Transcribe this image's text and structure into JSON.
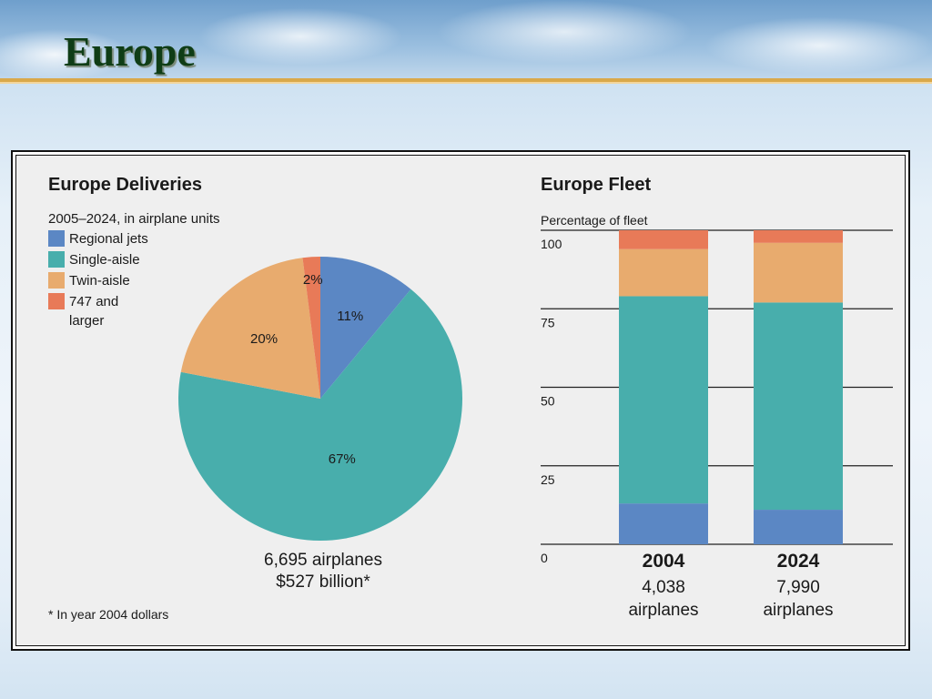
{
  "slide": {
    "title": "Europe"
  },
  "colors": {
    "regional": "#5b87c4",
    "single": "#48aeac",
    "twin": "#e8ab6e",
    "large": "#e87a58"
  },
  "chart_data": [
    {
      "type": "pie",
      "title": "Europe Deliveries",
      "subtitle": "2005–2024, in airplane units",
      "legend": [
        "Regional jets",
        "Single-aisle",
        "Twin-aisle",
        "747 and larger"
      ],
      "legend_lines": [
        [
          "Regional jets"
        ],
        [
          "Single-aisle"
        ],
        [
          "Twin-aisle"
        ],
        [
          "747 and",
          "larger"
        ]
      ],
      "slices": [
        {
          "name": "Regional jets",
          "value": 11,
          "label": "11%"
        },
        {
          "name": "Single-aisle",
          "value": 67,
          "label": "67%"
        },
        {
          "name": "Twin-aisle",
          "value": 20,
          "label": "20%"
        },
        {
          "name": "747 and larger",
          "value": 2,
          "label": "2%"
        }
      ],
      "total_airplanes": "6,695 airplanes",
      "total_value": "$527 billion*",
      "footnote": "* In year 2004 dollars"
    },
    {
      "type": "bar",
      "stacked": true,
      "title": "Europe Fleet",
      "ylabel": "Percentage of fleet",
      "ylim": [
        0,
        100
      ],
      "yticks": [
        "0",
        "25",
        "50",
        "75",
        "100"
      ],
      "categories": [
        "2004",
        "2024"
      ],
      "category_notes": [
        [
          "4,038",
          "airplanes"
        ],
        [
          "7,990",
          "airplanes"
        ]
      ],
      "series": [
        {
          "name": "Regional jets",
          "values": [
            13,
            11
          ]
        },
        {
          "name": "Single-aisle",
          "values": [
            66,
            66
          ]
        },
        {
          "name": "Twin-aisle",
          "values": [
            15,
            19
          ]
        },
        {
          "name": "747 and larger",
          "values": [
            6,
            4
          ]
        }
      ]
    }
  ]
}
